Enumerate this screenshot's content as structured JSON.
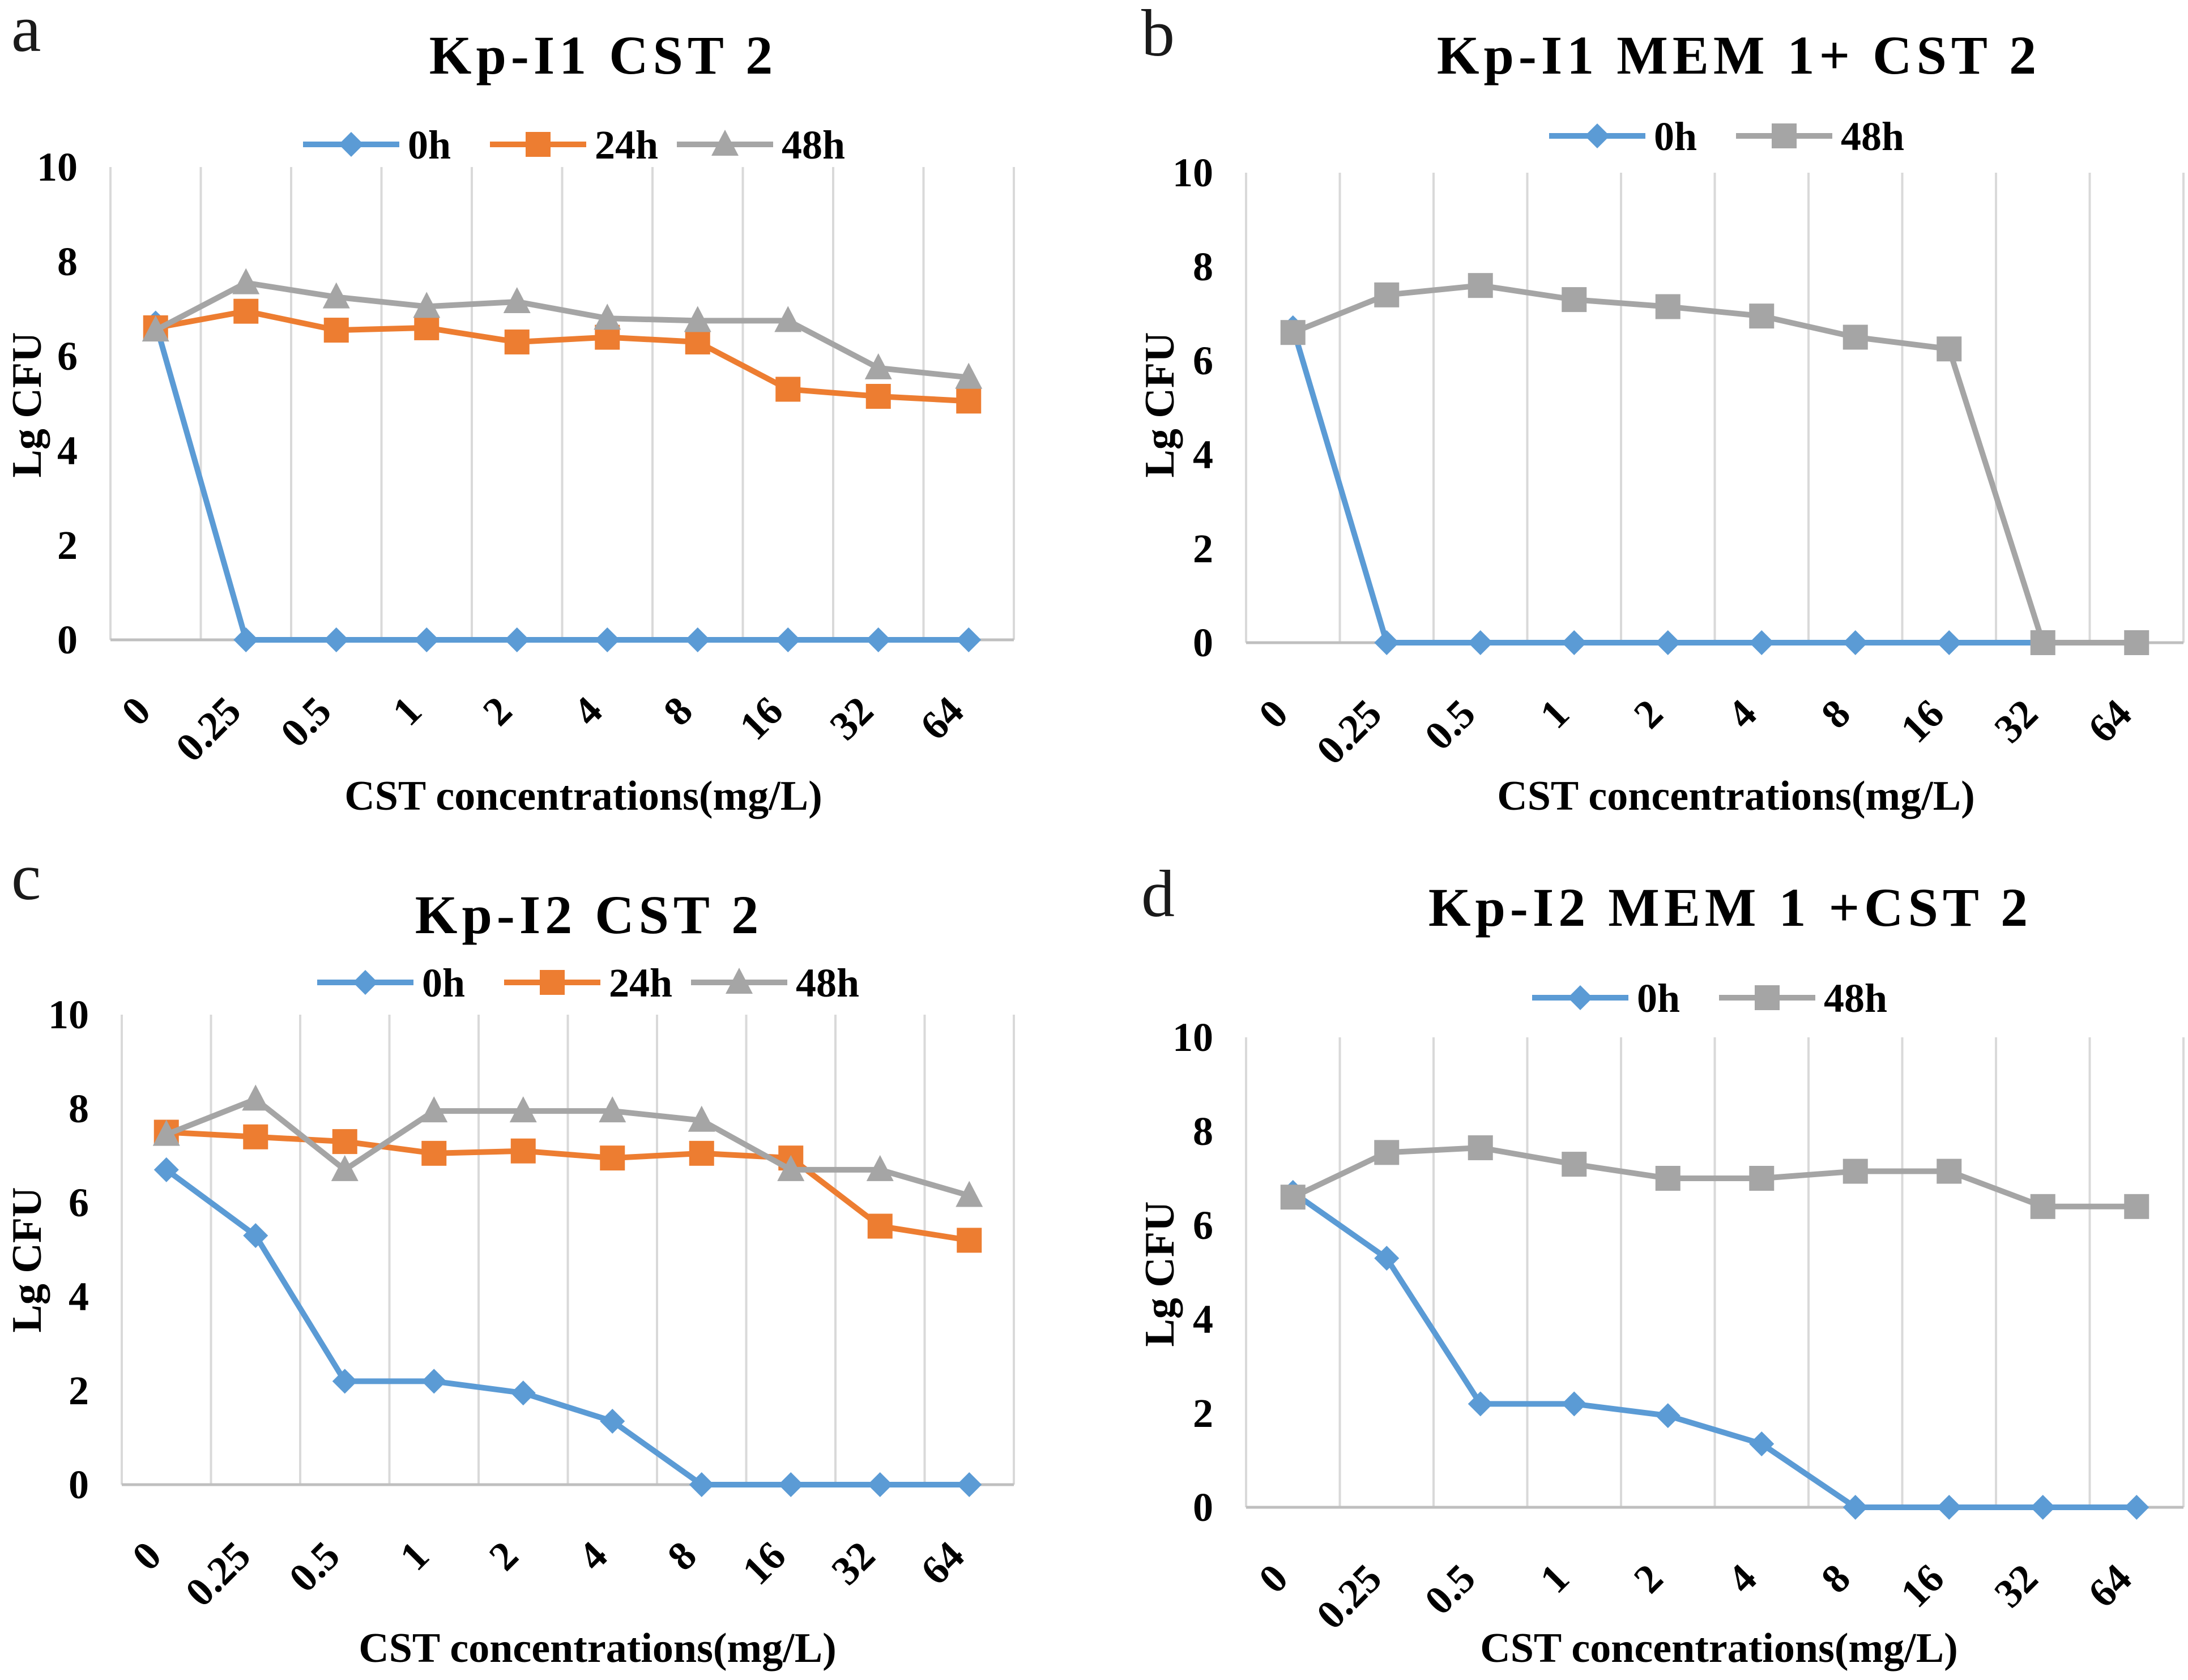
{
  "colors": {
    "0h": "#5b9bd5",
    "24h": "#ed7d31",
    "48h": "#a5a5a5",
    "grid": "#d9d9d9",
    "axis": "#bfbfbf"
  },
  "chart_data": [
    {
      "panel_letter": "a",
      "type": "line",
      "title": "Kp-I1 CST 2",
      "xlabel": "CST concentrations(mg/L)",
      "ylabel": "Lg CFU",
      "categories": [
        "0",
        "0.25",
        "0.5",
        "1",
        "2",
        "4",
        "8",
        "16",
        "32",
        "64"
      ],
      "ylim": [
        0,
        10
      ],
      "yticks": [
        "0",
        "2",
        "4",
        "6",
        "8",
        "10"
      ],
      "legend_position": "top",
      "series": [
        {
          "name": "0h",
          "marker": "diamond",
          "color_key": "0h",
          "values": [
            6.7,
            0,
            0,
            0,
            0,
            0,
            0,
            0,
            0,
            0
          ]
        },
        {
          "name": "24h",
          "marker": "square",
          "color_key": "24h",
          "values": [
            6.6,
            6.95,
            6.55,
            6.6,
            6.3,
            6.4,
            6.3,
            5.3,
            5.15,
            5.05
          ]
        },
        {
          "name": "48h",
          "marker": "triangle",
          "color_key": "48h",
          "values": [
            6.55,
            7.55,
            7.25,
            7.05,
            7.15,
            6.8,
            6.75,
            6.75,
            5.75,
            5.55
          ]
        }
      ]
    },
    {
      "panel_letter": "b",
      "type": "line",
      "title": "Kp-I1 MEM 1+ CST 2",
      "xlabel": "CST concentrations(mg/L)",
      "ylabel": "Lg CFU",
      "categories": [
        "0",
        "0.25",
        "0.5",
        "1",
        "2",
        "4",
        "8",
        "16",
        "32",
        "64"
      ],
      "ylim": [
        0,
        10
      ],
      "yticks": [
        "0",
        "2",
        "4",
        "6",
        "8",
        "10"
      ],
      "legend_position": "top",
      "series": [
        {
          "name": "0h",
          "marker": "diamond",
          "color_key": "0h",
          "values": [
            6.7,
            0,
            0,
            0,
            0,
            0,
            0,
            0,
            0,
            0
          ]
        },
        {
          "name": "48h",
          "marker": "square",
          "color_key": "48h",
          "values": [
            6.6,
            7.4,
            7.6,
            7.3,
            7.15,
            6.95,
            6.5,
            6.25,
            0,
            0
          ]
        }
      ]
    },
    {
      "panel_letter": "c",
      "type": "line",
      "title": "Kp-I2 CST 2",
      "xlabel": "CST concentrations(mg/L)",
      "ylabel": "Lg CFU",
      "categories": [
        "0",
        "0.25",
        "0.5",
        "1",
        "2",
        "4",
        "8",
        "16",
        "32",
        "64"
      ],
      "ylim": [
        0,
        10
      ],
      "yticks": [
        "0",
        "2",
        "4",
        "6",
        "8",
        "10"
      ],
      "legend_position": "top",
      "series": [
        {
          "name": "0h",
          "marker": "diamond",
          "color_key": "0h",
          "values": [
            6.7,
            5.3,
            2.2,
            2.2,
            1.95,
            1.35,
            0,
            0,
            0,
            0
          ]
        },
        {
          "name": "24h",
          "marker": "square",
          "color_key": "24h",
          "values": [
            7.5,
            7.4,
            7.3,
            7.05,
            7.1,
            6.95,
            7.05,
            6.95,
            5.5,
            5.2
          ]
        },
        {
          "name": "48h",
          "marker": "triangle",
          "color_key": "48h",
          "values": [
            7.45,
            8.2,
            6.7,
            7.95,
            7.95,
            7.95,
            7.75,
            6.7,
            6.7,
            6.15
          ]
        }
      ]
    },
    {
      "panel_letter": "d",
      "type": "line",
      "title": "Kp-I2 MEM 1 +CST 2",
      "xlabel": "CST concentrations(mg/L)",
      "ylabel": "Lg CFU",
      "categories": [
        "0",
        "0.25",
        "0.5",
        "1",
        "2",
        "4",
        "8",
        "16",
        "32",
        "64"
      ],
      "ylim": [
        0,
        10
      ],
      "yticks": [
        "0",
        "2",
        "4",
        "6",
        "8",
        "10"
      ],
      "legend_position": "top",
      "series": [
        {
          "name": "0h",
          "marker": "diamond",
          "color_key": "0h",
          "values": [
            6.7,
            5.3,
            2.2,
            2.2,
            1.95,
            1.35,
            0,
            0,
            0,
            0
          ]
        },
        {
          "name": "48h",
          "marker": "square",
          "color_key": "48h",
          "values": [
            6.6,
            7.55,
            7.65,
            7.3,
            7.0,
            7.0,
            7.15,
            7.15,
            6.4,
            6.4
          ]
        }
      ]
    }
  ]
}
